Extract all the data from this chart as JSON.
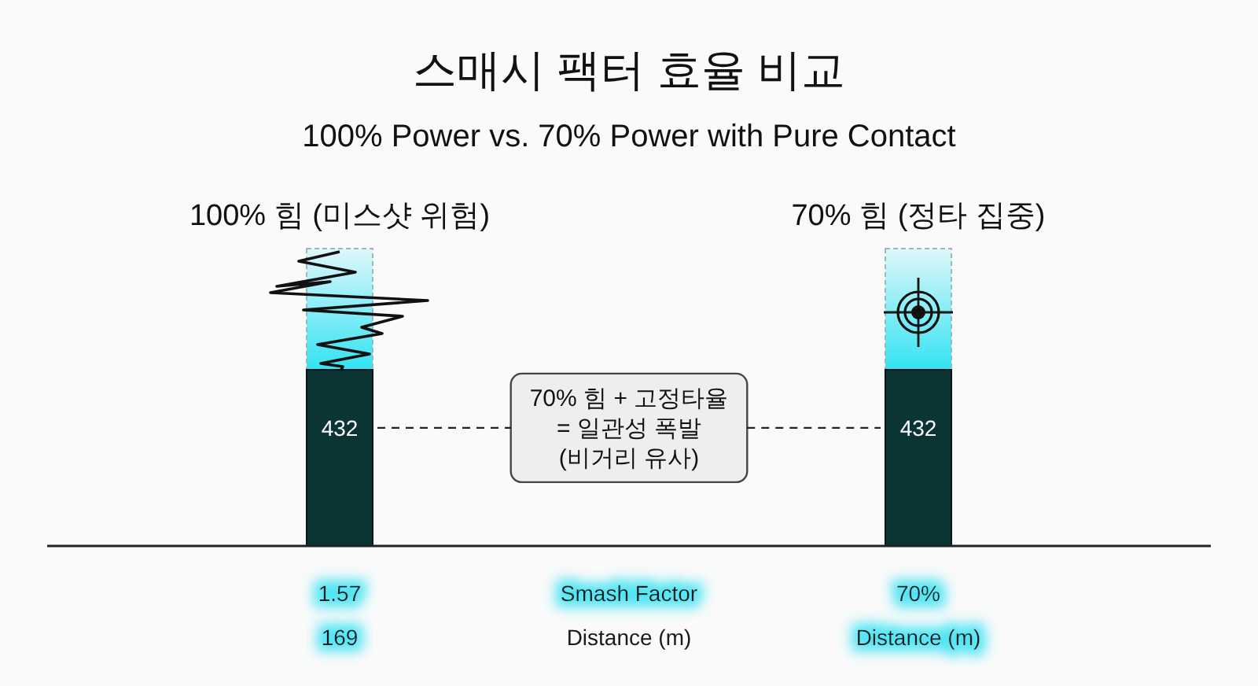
{
  "chart_data": {
    "type": "bar",
    "title": "스매시 팩터 효율 비교",
    "subtitle": "100% Power vs. 70% Power with Pure Contact",
    "categories": [
      "100% 힘 (미스샷 위험)",
      "70% 힘 (정타 집중)"
    ],
    "values": [
      432,
      432
    ],
    "color": "#0b3535",
    "data_labels": true,
    "annotations": [
      "70% 힘 + 고정타율\n= 일관성 폭발\n(비거리 유사)",
      "1.57",
      "Smash Factor",
      "70%",
      "169",
      "Distance (m)",
      "Distance (m)"
    ]
  }
}
